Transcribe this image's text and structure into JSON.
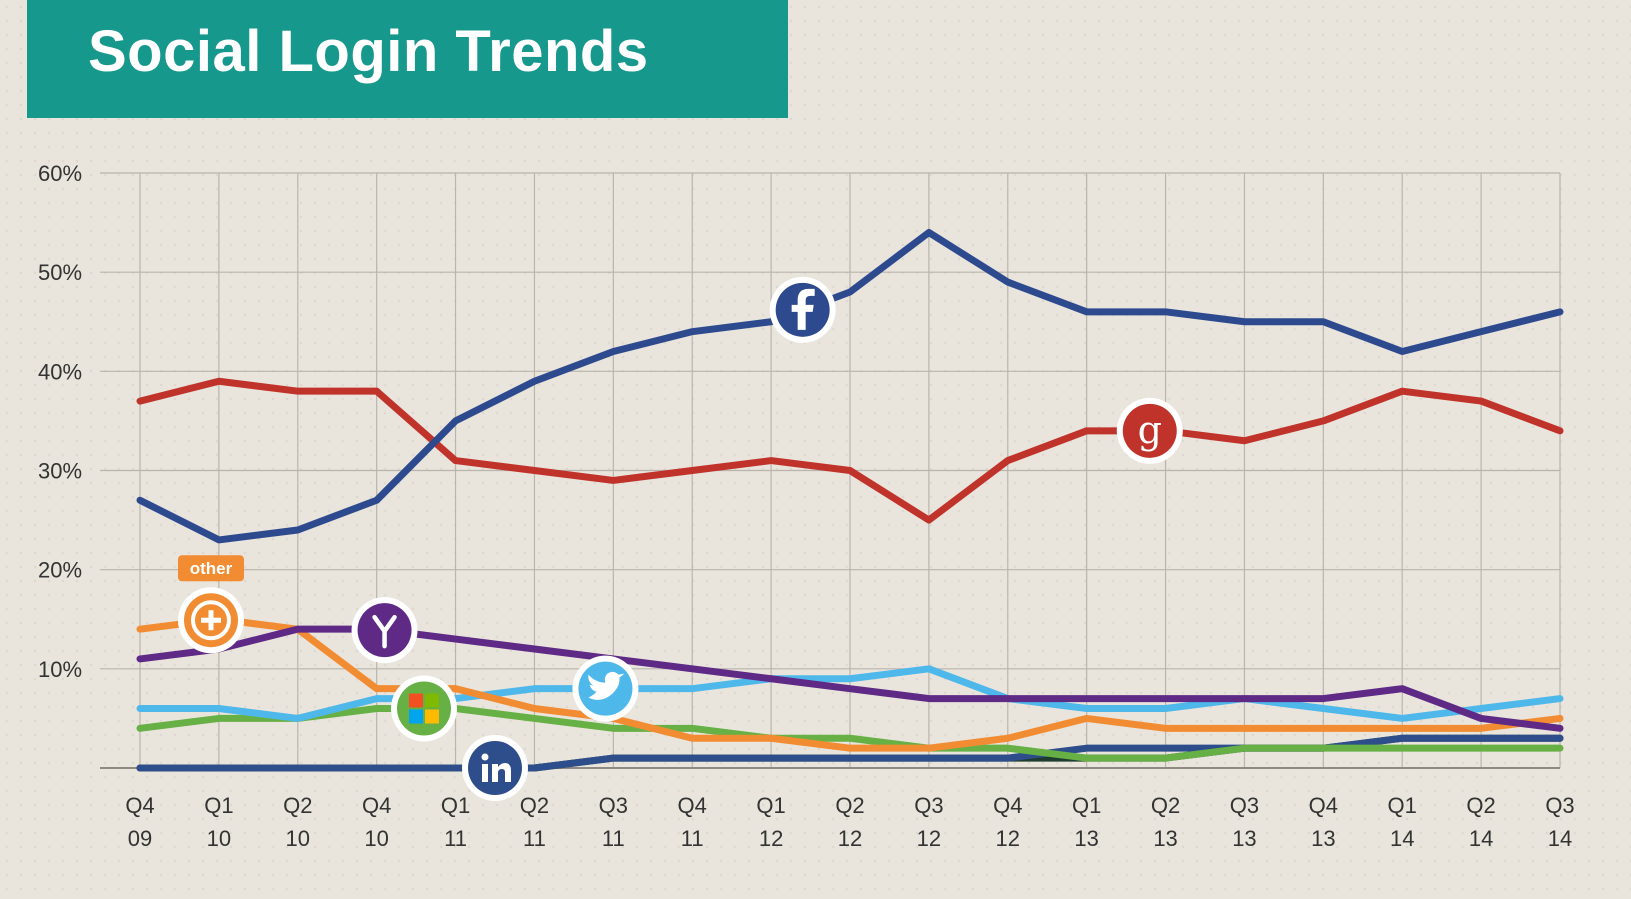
{
  "title": "Social Login Trends",
  "chart_data": {
    "type": "line",
    "title": "Social Login Trends",
    "xlabel": "",
    "ylabel": "",
    "ylim": [
      0,
      60
    ],
    "grid": true,
    "categories": [
      [
        "Q4",
        "09"
      ],
      [
        "Q1",
        "10"
      ],
      [
        "Q2",
        "10"
      ],
      [
        "Q4",
        "10"
      ],
      [
        "Q1",
        "11"
      ],
      [
        "Q2",
        "11"
      ],
      [
        "Q3",
        "11"
      ],
      [
        "Q4",
        "11"
      ],
      [
        "Q1",
        "12"
      ],
      [
        "Q2",
        "12"
      ],
      [
        "Q3",
        "12"
      ],
      [
        "Q4",
        "12"
      ],
      [
        "Q1",
        "13"
      ],
      [
        "Q2",
        "13"
      ],
      [
        "Q3",
        "13"
      ],
      [
        "Q4",
        "13"
      ],
      [
        "Q1",
        "14"
      ],
      [
        "Q2",
        "14"
      ],
      [
        "Q3",
        "14"
      ]
    ],
    "y_ticks": [
      "60%",
      "50%",
      "40%",
      "30%",
      "20%",
      "10%"
    ],
    "y_tick_values": [
      60,
      50,
      40,
      30,
      20,
      10
    ],
    "series": [
      {
        "icon": "facebook-icon",
        "color": "#2e4a8f",
        "badge_index": 8.4,
        "values": [
          27,
          23,
          24,
          27,
          35,
          39,
          42,
          44,
          45,
          48,
          54,
          49,
          46,
          46,
          45,
          45,
          42,
          44,
          46
        ]
      },
      {
        "icon": "google-icon",
        "color": "#c0332b",
        "badge_index": 12.8,
        "values": [
          37,
          39,
          38,
          38,
          31,
          30,
          29,
          30,
          31,
          30,
          25,
          31,
          34,
          34,
          33,
          35,
          38,
          37,
          34
        ]
      },
      {
        "icon": "other-plus-icon",
        "color": "#f28c33",
        "badge_index": 0.9,
        "label": "other",
        "values": [
          14,
          15,
          14,
          8,
          8,
          6,
          5,
          3,
          3,
          2,
          2,
          3,
          5,
          4,
          4,
          4,
          4,
          4,
          5
        ]
      },
      {
        "icon": "yahoo-icon",
        "color": "#5e2a86",
        "badge_index": 3.1,
        "values": [
          11,
          12,
          14,
          14,
          13,
          12,
          11,
          10,
          9,
          8,
          7,
          7,
          7,
          7,
          7,
          7,
          8,
          5,
          4
        ]
      },
      {
        "icon": "twitter-icon",
        "color": "#4fb8ea",
        "badge_index": 5.9,
        "values": [
          6,
          6,
          5,
          7,
          7,
          8,
          8,
          8,
          9,
          9,
          10,
          7,
          6,
          6,
          7,
          6,
          5,
          6,
          7
        ]
      },
      {
        "icon": "microsoft-icon",
        "color": "#66b046",
        "badge_index": 3.6,
        "values": [
          4,
          5,
          5,
          6,
          6,
          5,
          4,
          4,
          3,
          3,
          2,
          2,
          1,
          1,
          2,
          2,
          2,
          2,
          2
        ]
      },
      {
        "icon": "linkedin-icon",
        "color": "#2d4e8a",
        "badge_index": 4.5,
        "values": [
          0,
          0,
          0,
          0,
          0,
          0,
          1,
          1,
          1,
          1,
          1,
          1,
          2,
          2,
          2,
          2,
          3,
          3,
          3
        ]
      },
      {
        "icon": "unlabeled-dark-series",
        "color": "#1f3d2e",
        "badge_index": -1,
        "values": [
          0,
          0,
          0,
          0,
          0,
          0,
          1,
          1,
          1,
          1,
          1,
          1,
          1,
          1,
          2,
          2,
          3,
          3,
          3
        ]
      }
    ]
  }
}
